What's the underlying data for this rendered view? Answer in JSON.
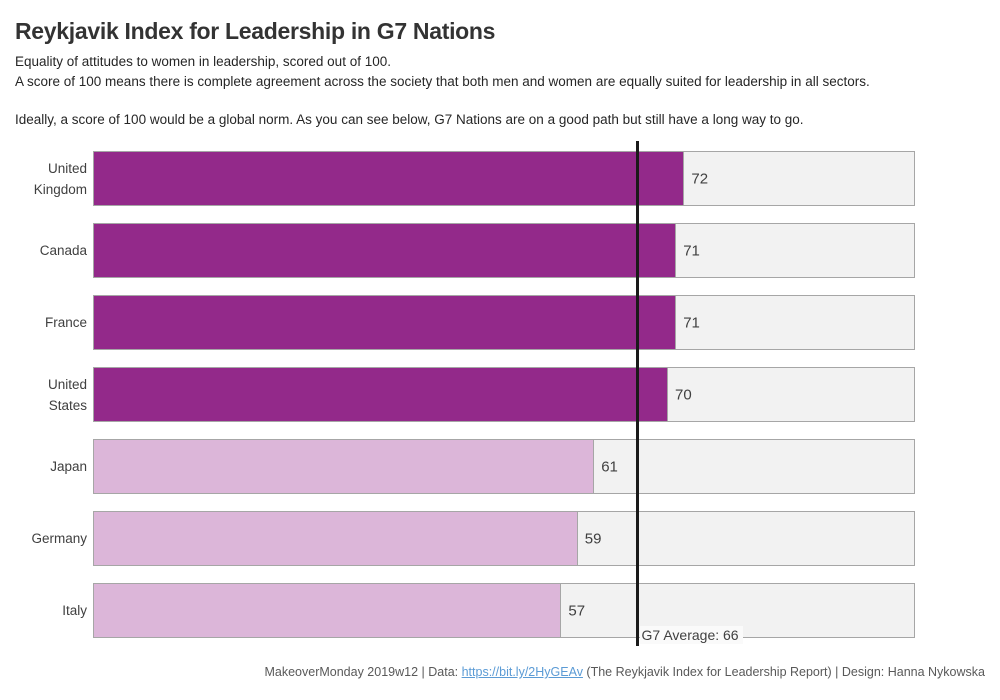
{
  "header": {
    "title": "Reykjavik Index for Leadership in G7 Nations",
    "subtitle_line1": "Equality of attitudes to women in leadership, scored out of 100.",
    "subtitle_line2": "A score of 100 means there is complete agreement across the society that both men and women are equally suited for leadership in all sectors.",
    "note": "Ideally, a score of 100 would be a global norm. As you can see below, G7 Nations are on a good path but still have a long way to go."
  },
  "chart_data": {
    "type": "bar",
    "orientation": "horizontal",
    "title": "Reykjavik Index for Leadership in G7 Nations",
    "categories": [
      "United Kingdom",
      "Canada",
      "France",
      "United States",
      "Japan",
      "Germany",
      "Italy"
    ],
    "values": [
      72,
      71,
      71,
      70,
      61,
      59,
      57
    ],
    "bar_colors": [
      "#93298a",
      "#93298a",
      "#93298a",
      "#93298a",
      "#dcb6d9",
      "#dcb6d9",
      "#dcb6d9"
    ],
    "xlim": [
      0,
      100
    ],
    "grid": false,
    "legend": false,
    "track_color": "#f2f2f2",
    "track_border_color": "#a6a6a6",
    "value_label_color": "#404040",
    "average_line": {
      "value": 66,
      "label": "G7 Average: 66",
      "color": "#1a1a1a"
    }
  },
  "footer": {
    "prefix": "MakeoverMonday 2019w12 | Data: ",
    "link": "https://bit.ly/2HyGEAv",
    "suffix": " (The Reykjavik Index for Leadership Report) | Design: Hanna Nykowska",
    "link_color": "#5b9bd5"
  }
}
